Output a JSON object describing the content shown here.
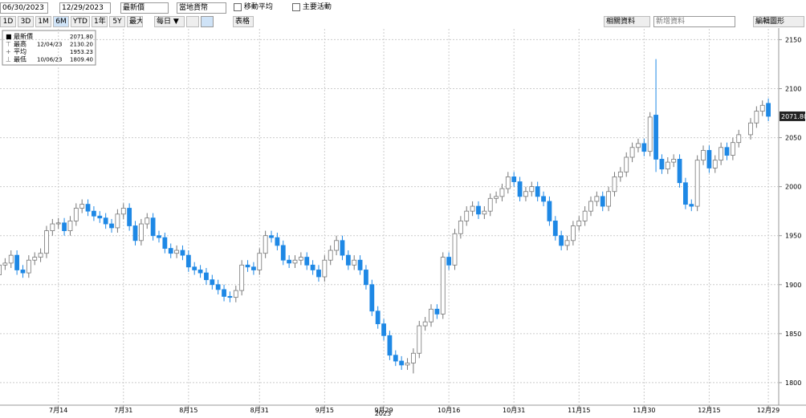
{
  "toolbar": {
    "start_date": "06/30/2023",
    "end_date": "12/29/2023",
    "field": "最新價",
    "currency": "當地貨幣",
    "moving_average": "移動平均",
    "events": "主要活動",
    "ranges": [
      "1D",
      "3D",
      "1M",
      "6M",
      "YTD",
      "1年",
      "5Y",
      "最大"
    ],
    "active_range": "6M",
    "frequency": "每日 ▼",
    "table": "表格",
    "related": "相關資料",
    "add_data": "新增資料",
    "edit": "編輯圖形"
  },
  "chart_data": {
    "type": "candlestick",
    "xlabel": "2023",
    "categories": [
      null,
      null,
      null,
      null,
      null,
      null,
      null,
      null,
      null,
      null,
      "7月14",
      null,
      null,
      null,
      null,
      null,
      null,
      null,
      null,
      null,
      null,
      "7月31",
      null,
      null,
      null,
      null,
      null,
      null,
      null,
      null,
      null,
      null,
      "8月15",
      null,
      null,
      null,
      null,
      null,
      null,
      null,
      null,
      null,
      null,
      null,
      "8月31",
      null,
      null,
      null,
      null,
      null,
      null,
      null,
      null,
      null,
      null,
      "9月15",
      null,
      null,
      null,
      null,
      null,
      null,
      null,
      null,
      null,
      "9月29",
      null,
      null,
      null,
      null,
      null,
      null,
      null,
      null,
      null,
      null,
      "10月16",
      null,
      null,
      null,
      null,
      null,
      null,
      null,
      null,
      null,
      null,
      "10月31",
      null,
      null,
      null,
      null,
      null,
      null,
      null,
      null,
      null,
      null,
      "11月15",
      null,
      null,
      null,
      null,
      null,
      null,
      null,
      null,
      null,
      null,
      "11月30",
      null,
      null,
      null,
      null,
      null,
      null,
      null,
      null,
      null,
      null,
      "12月15",
      null,
      null,
      null,
      null,
      null,
      null,
      null,
      null,
      null,
      "12月29"
    ],
    "open": [
      1910,
      1920,
      1922,
      1930,
      1915,
      1912,
      1925,
      1928,
      1932,
      1955,
      1962,
      1963,
      1955,
      1965,
      1978,
      1982,
      1975,
      1970,
      1968,
      1962,
      1958,
      1972,
      1978,
      1960,
      1945,
      1962,
      1968,
      1950,
      1948,
      1937,
      1932,
      1935,
      1930,
      1918,
      1915,
      1912,
      1905,
      1900,
      1895,
      1888,
      1887,
      1894,
      1920,
      1918,
      1915,
      1932,
      1950,
      1948,
      1940,
      1925,
      1922,
      1925,
      1928,
      1920,
      1915,
      1908,
      1925,
      1935,
      1945,
      1930,
      1920,
      1925,
      1915,
      1900,
      1873,
      1860,
      1848,
      1828,
      1822,
      1818,
      1820,
      1830,
      1858,
      1862,
      1875,
      1870,
      1928,
      1920,
      1952,
      1965,
      1975,
      1980,
      1972,
      1975,
      1988,
      1990,
      1998,
      2010,
      2005,
      1990,
      1995,
      2000,
      1990,
      1985,
      1965,
      1950,
      1940,
      1945,
      1960,
      1965,
      1975,
      1985,
      1990,
      1980,
      1995,
      2010,
      2015,
      2030,
      2040,
      2044,
      2036,
      2073,
      2028,
      2018,
      2025,
      2028,
      2004,
      1982,
      1980,
      2027,
      2037,
      2019,
      2027,
      2040,
      2032,
      2045,
      null,
      2053,
      2065,
      2077,
      2085
    ],
    "high": [
      1925,
      1927,
      1935,
      1935,
      1920,
      1930,
      1933,
      1937,
      1960,
      1967,
      1968,
      1968,
      1970,
      1983,
      1987,
      1987,
      1980,
      1975,
      1973,
      1967,
      1977,
      1983,
      1983,
      1965,
      1967,
      1973,
      1973,
      1955,
      1953,
      1942,
      1940,
      1940,
      1935,
      1923,
      1920,
      1917,
      1910,
      1905,
      1900,
      1893,
      1899,
      1925,
      1925,
      1923,
      1937,
      1955,
      1955,
      1953,
      1945,
      1930,
      1930,
      1933,
      1933,
      1925,
      1920,
      1930,
      1940,
      1950,
      1950,
      1935,
      1930,
      1930,
      1920,
      1905,
      1878,
      1865,
      1853,
      1833,
      1827,
      1825,
      1835,
      1863,
      1867,
      1880,
      1880,
      1933,
      1933,
      1957,
      1970,
      1980,
      1985,
      1985,
      1980,
      1993,
      1995,
      2003,
      2015,
      2015,
      2010,
      2000,
      2005,
      2005,
      1995,
      1990,
      1970,
      1955,
      1950,
      1965,
      1970,
      1980,
      1990,
      1995,
      1995,
      2000,
      2015,
      2020,
      2035,
      2045,
      2049,
      2049,
      2076,
      2130.2,
      2033,
      2030,
      2033,
      2033,
      2009,
      1987,
      2032,
      2042,
      2042,
      2032,
      2045,
      2045,
      2050,
      2058,
      null,
      2070,
      2082,
      2088,
      2090
    ],
    "low": [
      1905,
      1915,
      1917,
      1910,
      1907,
      1907,
      1920,
      1923,
      1927,
      1950,
      1957,
      1950,
      1950,
      1960,
      1973,
      1970,
      1965,
      1963,
      1957,
      1953,
      1953,
      1967,
      1955,
      1940,
      1940,
      1957,
      1945,
      1943,
      1932,
      1927,
      1927,
      1925,
      1913,
      1910,
      1907,
      1900,
      1895,
      1890,
      1883,
      1882,
      1882,
      1889,
      1913,
      1910,
      1910,
      1927,
      1943,
      1935,
      1920,
      1917,
      1917,
      1920,
      1915,
      1910,
      1903,
      1903,
      1920,
      1930,
      1925,
      1915,
      1915,
      1910,
      1895,
      1868,
      1855,
      1843,
      1823,
      1817,
      1813,
      1813,
      1809.4,
      1825,
      1853,
      1857,
      1865,
      1865,
      1915,
      1915,
      1947,
      1960,
      1970,
      1967,
      1967,
      1970,
      1983,
      1985,
      1993,
      2000,
      1985,
      1985,
      1990,
      1985,
      1980,
      1960,
      1945,
      1935,
      1935,
      1940,
      1955,
      1960,
      1970,
      1980,
      1975,
      1975,
      1990,
      2005,
      2010,
      2025,
      2035,
      2031,
      2031,
      2015,
      2013,
      2013,
      2020,
      1999,
      1977,
      1975,
      1975,
      2022,
      2014,
      2014,
      2022,
      2027,
      2027,
      2040,
      null,
      2048,
      2060,
      2072,
      2066.8
    ],
    "close": [
      1920,
      1922,
      1930,
      1915,
      1912,
      1925,
      1928,
      1932,
      1955,
      1962,
      1963,
      1955,
      1965,
      1978,
      1982,
      1975,
      1970,
      1968,
      1962,
      1958,
      1972,
      1978,
      1960,
      1945,
      1962,
      1968,
      1950,
      1948,
      1937,
      1932,
      1935,
      1930,
      1918,
      1915,
      1912,
      1905,
      1900,
      1895,
      1888,
      1887,
      1894,
      1920,
      1918,
      1915,
      1932,
      1950,
      1948,
      1940,
      1925,
      1922,
      1925,
      1928,
      1920,
      1915,
      1908,
      1925,
      1935,
      1945,
      1930,
      1920,
      1925,
      1915,
      1900,
      1873,
      1860,
      1848,
      1828,
      1822,
      1818,
      1820,
      1830,
      1858,
      1862,
      1875,
      1870,
      1928,
      1920,
      1952,
      1965,
      1975,
      1980,
      1972,
      1975,
      1988,
      1990,
      1998,
      2010,
      2005,
      1990,
      1995,
      2000,
      1990,
      1985,
      1965,
      1950,
      1940,
      1945,
      1960,
      1965,
      1975,
      1985,
      1990,
      1980,
      1995,
      2010,
      2015,
      2030,
      2040,
      2044,
      2036,
      2071,
      2028,
      2018,
      2025,
      2028,
      2004,
      1982,
      1980,
      2027,
      2037,
      2019,
      2027,
      2040,
      2032,
      2045,
      2053,
      null,
      2065,
      2077,
      2083,
      2071.8
    ],
    "up_color": "#ffffff",
    "down_color": "#1e88e5",
    "ylim": [
      1777,
      2161
    ],
    "yticks": [
      1800,
      1850,
      1900,
      1950,
      2000,
      2050,
      2100,
      2150
    ],
    "grid": true,
    "last_price_label": "2071.80",
    "legend": [
      {
        "label": "最新價",
        "value": "2071.80"
      },
      {
        "label": "最高",
        "date": "12/04/23",
        "value": "2130.20"
      },
      {
        "label": "平均",
        "value": "1953.23"
      },
      {
        "label": "最低",
        "date": "10/06/23",
        "value": "1809.40"
      }
    ]
  }
}
